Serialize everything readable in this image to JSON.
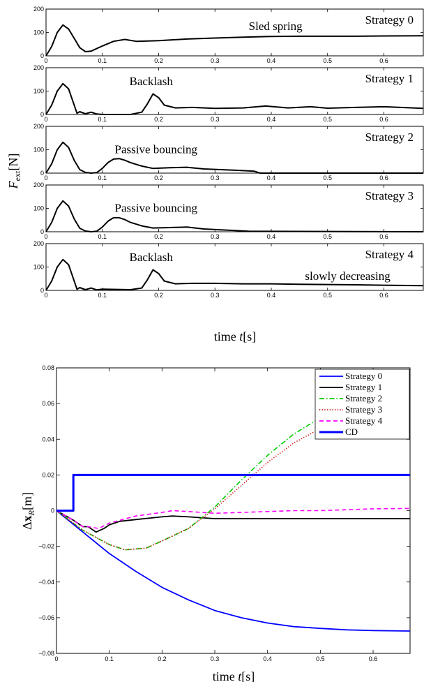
{
  "top_figure": {
    "ylabel": "F_ext[N]",
    "xlabel": "time t[s]",
    "xlim": [
      0,
      0.67
    ],
    "ylim": [
      0,
      200
    ],
    "xticks": [
      "0",
      "0.1",
      "0.2",
      "0.3",
      "0.4",
      "0.5",
      "0.6"
    ],
    "yticks": [
      "0",
      "100",
      "200"
    ]
  },
  "bottom_figure": {
    "ylabel": "Δx_R[m]",
    "xlabel": "time t[s]",
    "xlim": [
      0,
      0.67
    ],
    "ylim": [
      -0.08,
      0.08
    ],
    "xticks": [
      "0",
      "0.1",
      "0.2",
      "0.3",
      "0.4",
      "0.5",
      "0.6"
    ],
    "yticks": [
      "0.08",
      "0.06",
      "0.04",
      "0.02",
      "0",
      "−0.02",
      "−0.04",
      "−0.06",
      "−0.08"
    ]
  },
  "chart_data": [
    {
      "type": "line",
      "panel": 0,
      "title": "Strategy 0",
      "annotations": [
        {
          "text": "Sled spring",
          "x": 0.36,
          "y": 110
        }
      ],
      "xlim": [
        0,
        0.67
      ],
      "ylim": [
        0,
        200
      ],
      "x": [
        0,
        0.01,
        0.02,
        0.03,
        0.04,
        0.05,
        0.06,
        0.07,
        0.08,
        0.1,
        0.12,
        0.14,
        0.16,
        0.2,
        0.25,
        0.3,
        0.35,
        0.4,
        0.45,
        0.5,
        0.55,
        0.6,
        0.67
      ],
      "y": [
        0,
        40,
        100,
        132,
        115,
        75,
        35,
        18,
        20,
        42,
        62,
        70,
        62,
        65,
        72,
        76,
        80,
        83,
        84,
        84,
        84,
        85,
        86
      ]
    },
    {
      "type": "line",
      "panel": 1,
      "title": "Strategy 1",
      "annotations": [
        {
          "text": "Backlash",
          "x": 0.148,
          "y": 125
        }
      ],
      "xlim": [
        0,
        0.67
      ],
      "ylim": [
        0,
        200
      ],
      "x": [
        0,
        0.01,
        0.02,
        0.03,
        0.04,
        0.05,
        0.055,
        0.06,
        0.07,
        0.08,
        0.09,
        0.1,
        0.15,
        0.17,
        0.18,
        0.19,
        0.2,
        0.21,
        0.23,
        0.26,
        0.3,
        0.35,
        0.39,
        0.43,
        0.47,
        0.5,
        0.55,
        0.6,
        0.67
      ],
      "y": [
        0,
        40,
        100,
        132,
        110,
        40,
        5,
        12,
        3,
        10,
        2,
        0,
        0,
        10,
        45,
        88,
        72,
        40,
        28,
        30,
        26,
        28,
        36,
        28,
        33,
        27,
        30,
        33,
        26
      ]
    },
    {
      "type": "line",
      "panel": 2,
      "title": "Strategy 2",
      "annotations": [
        {
          "text": "Passive bouncing",
          "x": 0.122,
          "y": 85
        }
      ],
      "xlim": [
        0,
        0.67
      ],
      "ylim": [
        0,
        200
      ],
      "x": [
        0,
        0.01,
        0.02,
        0.03,
        0.04,
        0.05,
        0.06,
        0.07,
        0.08,
        0.09,
        0.1,
        0.11,
        0.12,
        0.13,
        0.14,
        0.15,
        0.17,
        0.19,
        0.22,
        0.25,
        0.28,
        0.31,
        0.34,
        0.37,
        0.38,
        0.67
      ],
      "y": [
        0,
        40,
        100,
        132,
        110,
        55,
        15,
        3,
        0,
        2,
        20,
        45,
        60,
        62,
        55,
        45,
        30,
        20,
        23,
        25,
        18,
        15,
        12,
        8,
        0,
        0
      ]
    },
    {
      "type": "line",
      "panel": 3,
      "title": "Strategy 3",
      "annotations": [
        {
          "text": "Passive bouncing",
          "x": 0.122,
          "y": 85
        }
      ],
      "xlim": [
        0,
        0.67
      ],
      "ylim": [
        0,
        200
      ],
      "x": [
        0,
        0.01,
        0.02,
        0.03,
        0.04,
        0.05,
        0.06,
        0.07,
        0.08,
        0.09,
        0.1,
        0.11,
        0.12,
        0.13,
        0.14,
        0.15,
        0.17,
        0.19,
        0.22,
        0.25,
        0.28,
        0.31,
        0.33,
        0.36,
        0.67
      ],
      "y": [
        0,
        40,
        100,
        132,
        110,
        55,
        15,
        3,
        0,
        2,
        20,
        45,
        60,
        60,
        52,
        40,
        25,
        16,
        18,
        20,
        12,
        8,
        6,
        2,
        0
      ]
    },
    {
      "type": "line",
      "panel": 4,
      "title": "Strategy 4",
      "annotations": [
        {
          "text": "Backlash",
          "x": 0.148,
          "y": 125
        },
        {
          "text": "slowly decreasing",
          "x": 0.46,
          "y": 45
        }
      ],
      "xlim": [
        0,
        0.67
      ],
      "ylim": [
        0,
        200
      ],
      "x": [
        0,
        0.01,
        0.02,
        0.03,
        0.04,
        0.05,
        0.055,
        0.06,
        0.07,
        0.08,
        0.09,
        0.1,
        0.15,
        0.17,
        0.18,
        0.19,
        0.2,
        0.21,
        0.23,
        0.26,
        0.3,
        0.35,
        0.4,
        0.45,
        0.5,
        0.55,
        0.6,
        0.67
      ],
      "y": [
        0,
        40,
        100,
        132,
        110,
        40,
        5,
        12,
        3,
        10,
        2,
        5,
        3,
        10,
        45,
        88,
        72,
        40,
        28,
        30,
        30,
        28,
        28,
        26,
        25,
        24,
        22,
        20
      ]
    },
    {
      "type": "line",
      "panel": 5,
      "xlim": [
        0,
        0.67
      ],
      "ylim": [
        -0.08,
        0.08
      ],
      "legend_position": "top-right",
      "series": [
        {
          "name": "Strategy 0",
          "color": "#0000ff",
          "dash": "solid",
          "x": [
            0,
            0.05,
            0.1,
            0.15,
            0.2,
            0.25,
            0.3,
            0.35,
            0.4,
            0.45,
            0.5,
            0.55,
            0.6,
            0.67
          ],
          "y": [
            0,
            -0.012,
            -0.024,
            -0.034,
            -0.043,
            -0.05,
            -0.056,
            -0.06,
            -0.063,
            -0.065,
            -0.066,
            -0.0668,
            -0.0672,
            -0.0675
          ]
        },
        {
          "name": "Strategy 1",
          "color": "#000000",
          "dash": "solid",
          "x": [
            0,
            0.03,
            0.05,
            0.06,
            0.075,
            0.09,
            0.1,
            0.12,
            0.15,
            0.2,
            0.22,
            0.25,
            0.3,
            0.35,
            0.4,
            0.45,
            0.5,
            0.55,
            0.6,
            0.67
          ],
          "y": [
            0,
            -0.005,
            -0.009,
            -0.009,
            -0.012,
            -0.01,
            -0.008,
            -0.006,
            -0.005,
            -0.0035,
            -0.003,
            -0.0035,
            -0.0045,
            -0.0045,
            -0.0045,
            -0.0045,
            -0.0045,
            -0.0045,
            -0.0045,
            -0.0045
          ]
        },
        {
          "name": "Strategy 2",
          "color": "#00cc00",
          "dash": "dashdot",
          "x": [
            0,
            0.05,
            0.1,
            0.13,
            0.17,
            0.2,
            0.25,
            0.3,
            0.35,
            0.4,
            0.45,
            0.5,
            0.55,
            0.6,
            0.67
          ],
          "y": [
            0,
            -0.011,
            -0.019,
            -0.022,
            -0.021,
            -0.017,
            -0.01,
            0.002,
            0.017,
            0.031,
            0.043,
            0.052,
            0.057,
            0.06,
            0.065
          ]
        },
        {
          "name": "Strategy 3",
          "color": "#cc0000",
          "dash": "dotted",
          "x": [
            0,
            0.05,
            0.1,
            0.13,
            0.17,
            0.2,
            0.25,
            0.3,
            0.35,
            0.4,
            0.45,
            0.5,
            0.55,
            0.6,
            0.67
          ],
          "y": [
            0,
            -0.011,
            -0.019,
            -0.022,
            -0.021,
            -0.017,
            -0.01,
            0.001,
            0.014,
            0.027,
            0.038,
            0.046,
            0.05,
            0.052,
            0.054
          ]
        },
        {
          "name": "Strategy 4",
          "color": "#ff00ff",
          "dash": "dashed",
          "x": [
            0,
            0.03,
            0.05,
            0.06,
            0.08,
            0.1,
            0.15,
            0.2,
            0.22,
            0.25,
            0.3,
            0.35,
            0.4,
            0.45,
            0.5,
            0.55,
            0.6,
            0.67
          ],
          "y": [
            0,
            -0.005,
            -0.009,
            -0.009,
            -0.01,
            -0.007,
            -0.003,
            -0.001,
            0,
            -0.0005,
            -0.0015,
            -0.001,
            -0.0005,
            0,
            0,
            0.0005,
            0.001,
            0.0012
          ]
        },
        {
          "name": "CD",
          "color": "#0000ff",
          "dash": "thick",
          "x": [
            0,
            0.032,
            0.032,
            0.67
          ],
          "y": [
            0,
            0,
            0.02,
            0.02
          ]
        }
      ]
    }
  ]
}
